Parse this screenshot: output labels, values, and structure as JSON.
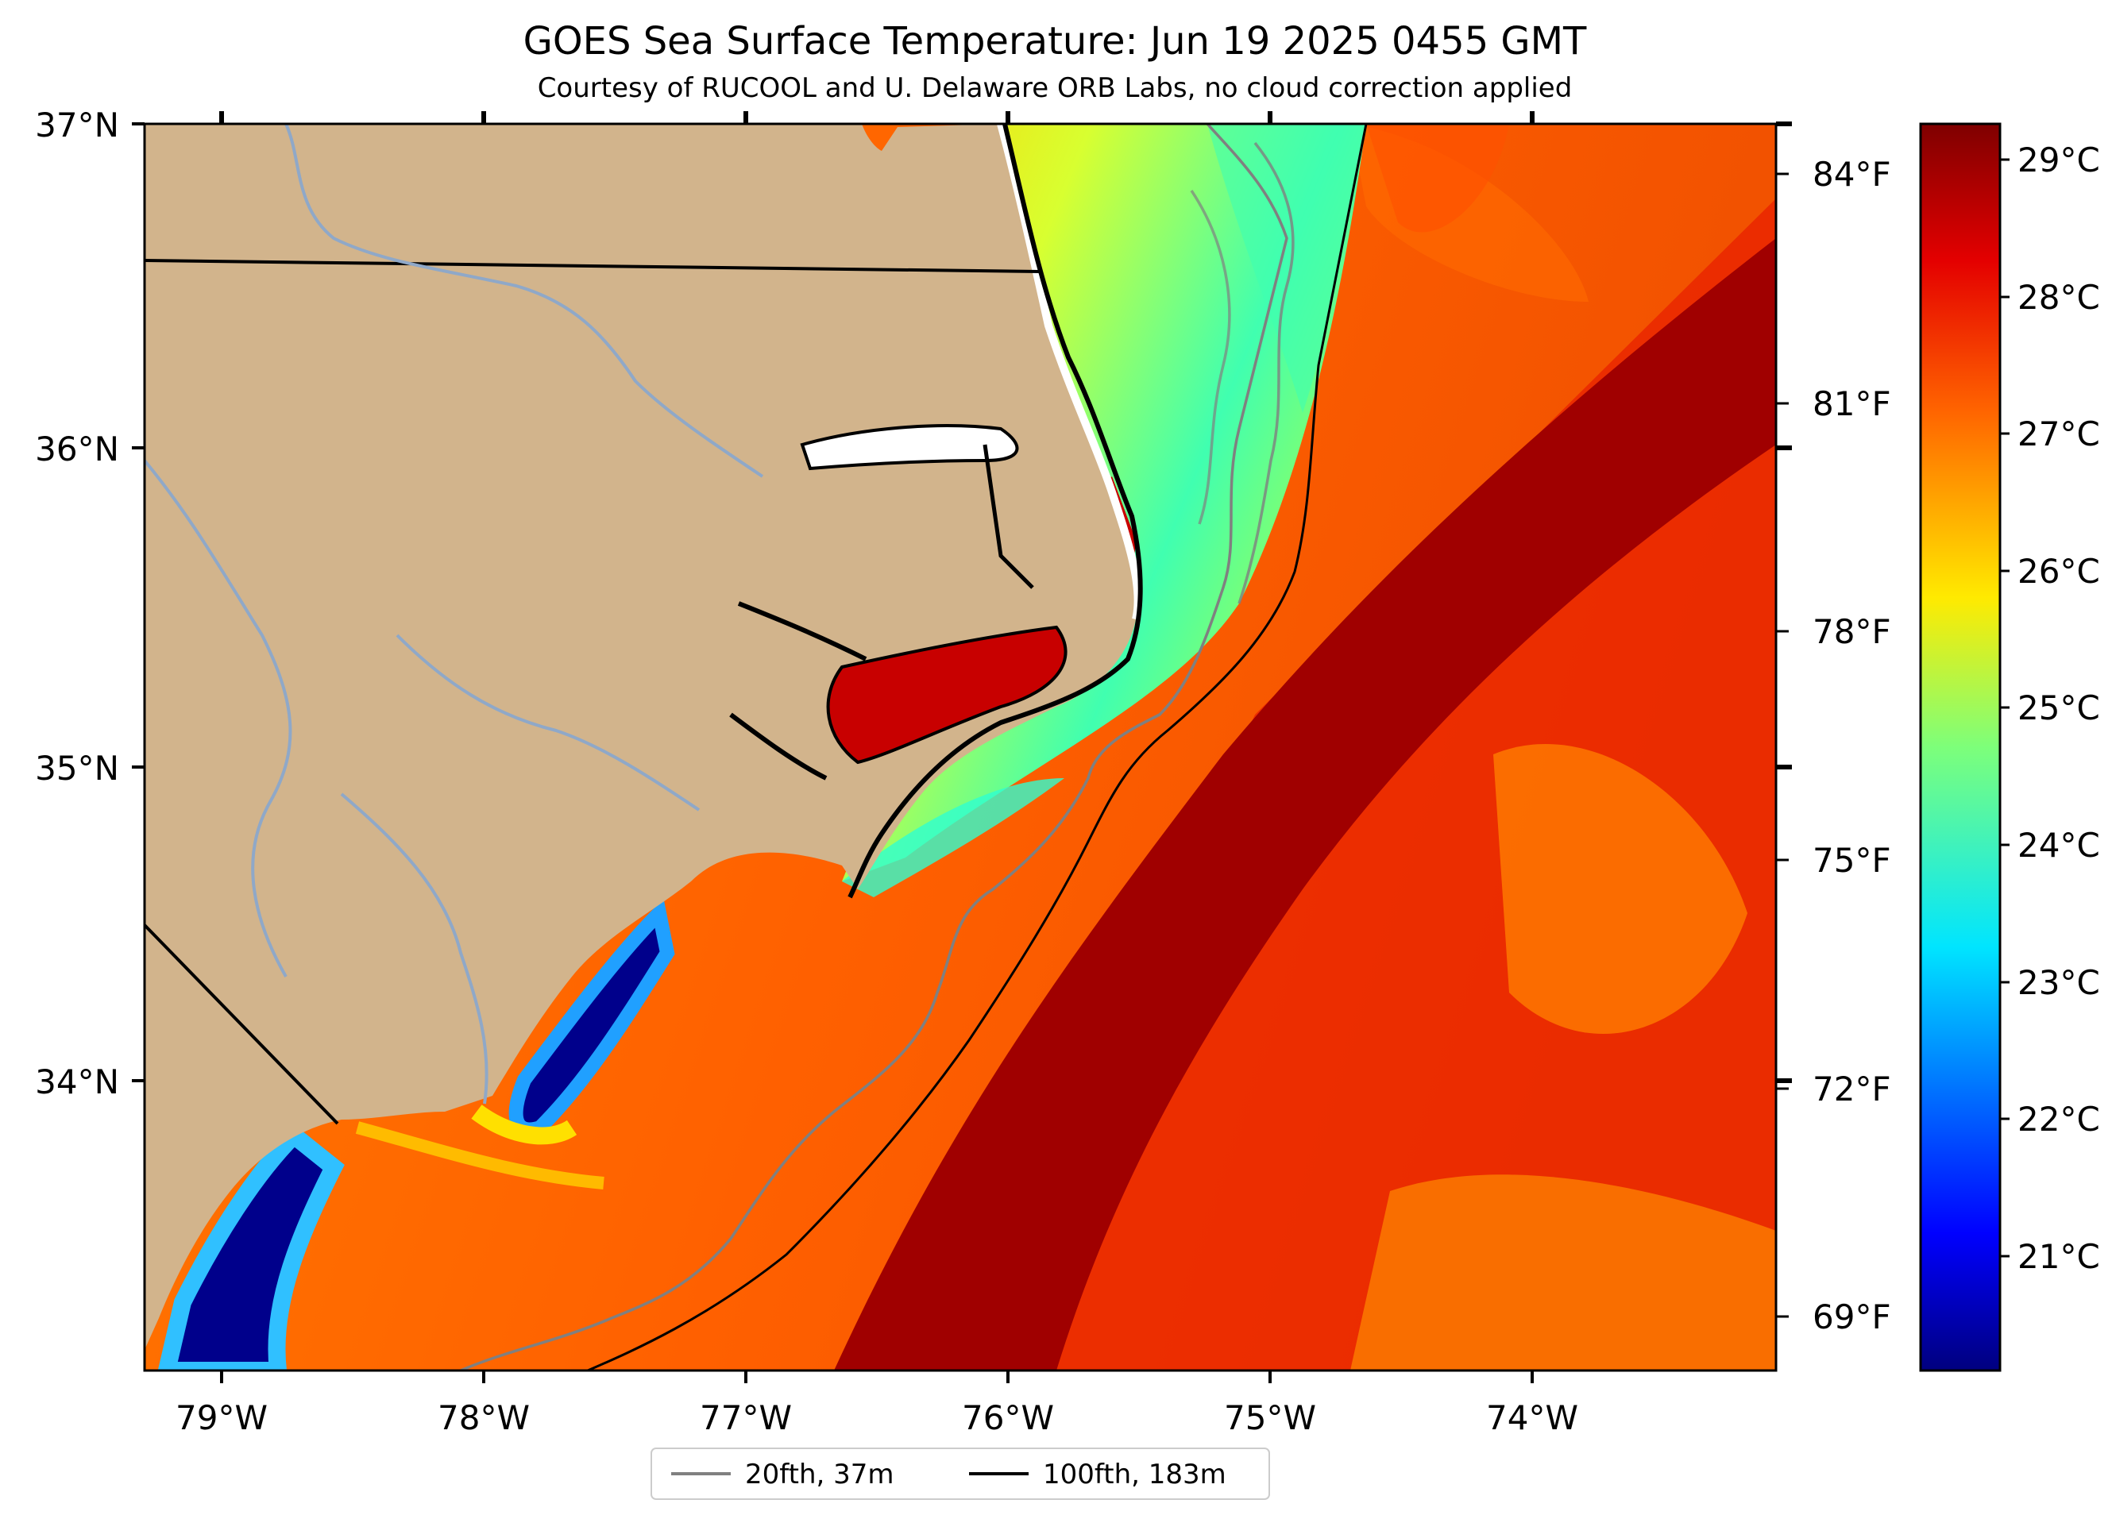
{
  "title": "GOES Sea Surface Temperature: Jun 19 2025 0455 GMT",
  "subtitle": "Courtesy of RUCOOL and U. Delaware ORB Labs, no cloud correction applied",
  "map": {
    "lon_labels": [
      "79°W",
      "78°W",
      "77°W",
      "76°W",
      "75°W",
      "74°W"
    ],
    "lat_labels": [
      "37°N",
      "36°N",
      "35°N",
      "34°N"
    ],
    "f_labels": [
      "84°F",
      "81°F",
      "78°F",
      "75°F",
      "72°F",
      "69°F"
    ]
  },
  "colorbar": {
    "labels": [
      "29°C",
      "28°C",
      "27°C",
      "26°C",
      "25°C",
      "24°C",
      "23°C",
      "22°C",
      "21°C"
    ]
  },
  "legend": {
    "items": [
      {
        "label": "20fth, 37m",
        "color": "#808080"
      },
      {
        "label": "100fth, 183m",
        "color": "#000000"
      }
    ]
  },
  "colors": {
    "land": "#d2b48c",
    "gulf_stream": "#a00000",
    "shelf_warm": "#ff6a00",
    "shelf_cool": "#fff200",
    "cold_pool": "#00008b",
    "river": "#8fa8c8"
  }
}
